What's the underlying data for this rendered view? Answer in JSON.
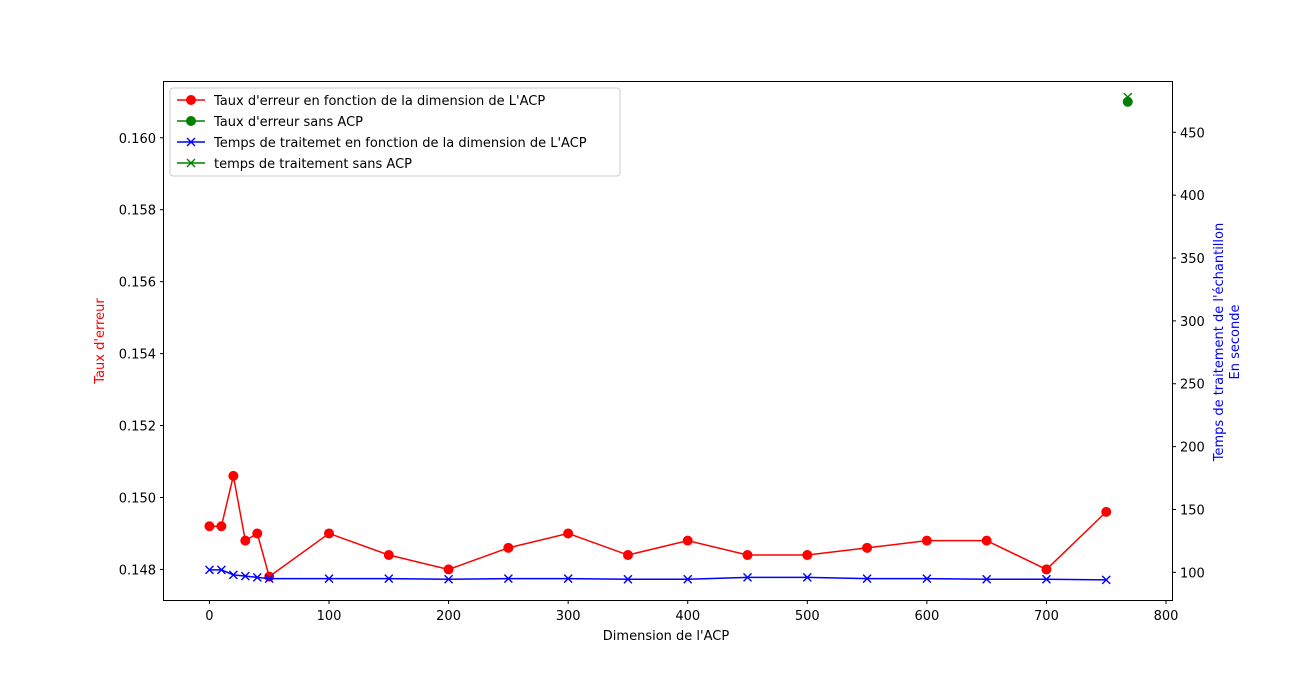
{
  "chart_data": {
    "type": "line",
    "xlabel": "Dimension de l'ACP",
    "ylabel_left": "Taux d'erreur",
    "ylabel_right": [
      "Temps de traitement de l'échantillon",
      "En seconde"
    ],
    "xlim": [
      -38,
      805
    ],
    "ylim_left": [
      0.14715,
      0.16155
    ],
    "ylim_right": [
      78,
      490
    ],
    "x_ticks": [
      0,
      100,
      200,
      300,
      400,
      500,
      600,
      700,
      800
    ],
    "x_tick_labels": [
      "0",
      "100",
      "200",
      "300",
      "400",
      "500",
      "600",
      "700",
      "800"
    ],
    "y_left_ticks": [
      0.148,
      0.15,
      0.152,
      0.154,
      0.156,
      0.158,
      0.16
    ],
    "y_left_tick_labels": [
      "0.148",
      "0.150",
      "0.152",
      "0.154",
      "0.156",
      "0.158",
      "0.160"
    ],
    "y_right_ticks": [
      100,
      150,
      200,
      250,
      300,
      350,
      400,
      450
    ],
    "y_right_tick_labels": [
      "100",
      "150",
      "200",
      "250",
      "300",
      "350",
      "400",
      "450"
    ],
    "legend_position": "top-left",
    "series": [
      {
        "name": "Taux d'erreur en fonction de la dimension de L'ACP",
        "axis": "left",
        "color": "#ff0000",
        "marker": "circle",
        "x": [
          0,
          10,
          20,
          30,
          40,
          50,
          100,
          150,
          200,
          250,
          300,
          350,
          400,
          450,
          500,
          550,
          600,
          650,
          700,
          750
        ],
        "y": [
          0.1492,
          0.1492,
          0.1506,
          0.1488,
          0.149,
          0.1478,
          0.149,
          0.1484,
          0.148,
          0.1486,
          0.149,
          0.1484,
          0.1488,
          0.1484,
          0.1484,
          0.1486,
          0.1488,
          0.1488,
          0.148,
          0.1496
        ]
      },
      {
        "name": "Taux d'erreur sans ACP",
        "axis": "left",
        "color": "#008000",
        "marker": "circle",
        "x": [
          768
        ],
        "y": [
          0.161
        ]
      },
      {
        "name": "Temps de traitemet en fonction de la dimension de L'ACP",
        "axis": "right",
        "color": "#0000ff",
        "marker": "x",
        "x": [
          0,
          10,
          20,
          30,
          40,
          50,
          100,
          150,
          200,
          250,
          300,
          350,
          400,
          450,
          500,
          550,
          600,
          650,
          700,
          750
        ],
        "y": [
          102,
          102,
          98,
          97,
          96,
          95,
          95,
          95,
          94.5,
          95,
          95,
          94.5,
          94.5,
          96,
          96,
          95,
          95,
          94.5,
          94.5,
          94
        ]
      },
      {
        "name": "temps de traitement sans ACP",
        "axis": "right",
        "color": "#008000",
        "marker": "x",
        "x": [
          768
        ],
        "y": [
          478
        ]
      }
    ]
  }
}
